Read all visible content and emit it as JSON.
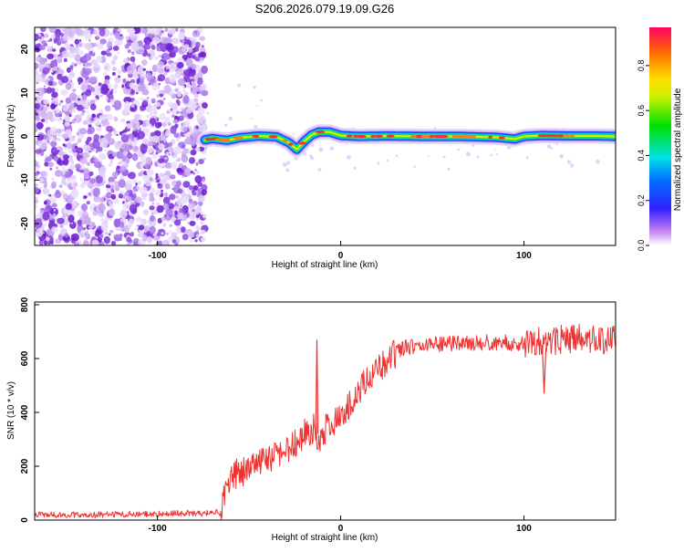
{
  "title": "S206.2026.079.19.09.G26",
  "chart_data": [
    {
      "type": "heatmap",
      "xlabel": "Height of straight line (km)",
      "ylabel": "Frequency (Hz)",
      "xlim": [
        -167,
        150
      ],
      "ylim": [
        -25,
        25
      ],
      "xticks": [
        -100,
        0,
        100
      ],
      "yticks": [
        -20,
        -10,
        0,
        10,
        20
      ],
      "colorbar": {
        "label": "Normalized spectral amplitude",
        "range": [
          0,
          0.97
        ],
        "ticks": [
          0,
          0.2,
          0.4,
          0.6,
          0.8
        ],
        "tick_labels": [
          "0.0",
          "0.2",
          "0.4",
          "0.6",
          "0.8"
        ]
      },
      "noise_region_x": [
        -167,
        -74
      ],
      "ridge": {
        "x": [
          -74,
          -70,
          -62,
          -55,
          -45,
          -35,
          -28,
          -24,
          -20,
          -16,
          -12,
          -6,
          0,
          10,
          25,
          45,
          65,
          85,
          95,
          100,
          110,
          125,
          140,
          150
        ],
        "freq": [
          -0.8,
          -0.5,
          -0.9,
          -0.3,
          0.1,
          -0.1,
          -1.5,
          -3.0,
          -1.2,
          0.3,
          1.0,
          1.0,
          0.2,
          0.0,
          0.1,
          0.0,
          0.0,
          -0.2,
          -0.6,
          0.0,
          0.2,
          0.1,
          0.1,
          0.0
        ]
      }
    },
    {
      "type": "line",
      "xlabel": "Height of straight line (km)",
      "ylabel": "SNR (10 * v/v)",
      "xlim": [
        -167,
        150
      ],
      "ylim": [
        0,
        810
      ],
      "xticks": [
        -100,
        0,
        100
      ],
      "yticks": [
        0,
        200,
        400,
        600,
        800
      ],
      "color": "#ee3333",
      "series": [
        {
          "name": "SNR",
          "x": [
            -167,
            -150,
            -130,
            -110,
            -90,
            -75,
            -66,
            -62,
            -58,
            -52,
            -46,
            -40,
            -34,
            -28,
            -24,
            -20,
            -16,
            -14,
            -12,
            -8,
            -4,
            0,
            5,
            10,
            15,
            20,
            25,
            30,
            35,
            45,
            60,
            75,
            90,
            100,
            110,
            120,
            130,
            140,
            150
          ],
          "y": [
            20,
            20,
            20,
            22,
            25,
            25,
            30,
            120,
            170,
            180,
            200,
            230,
            240,
            270,
            290,
            320,
            330,
            350,
            260,
            340,
            360,
            380,
            430,
            470,
            530,
            560,
            590,
            620,
            640,
            650,
            655,
            660,
            660,
            650,
            665,
            670,
            675,
            670,
            670
          ],
          "spikes": [
            {
              "x": [
                -13.6,
                -13.0,
                -12.4
              ],
              "y": [
                330,
                670,
                320
              ]
            },
            {
              "x": [
                110,
                111,
                112
              ],
              "y": [
                650,
                470,
                640
              ]
            }
          ]
        }
      ]
    }
  ]
}
